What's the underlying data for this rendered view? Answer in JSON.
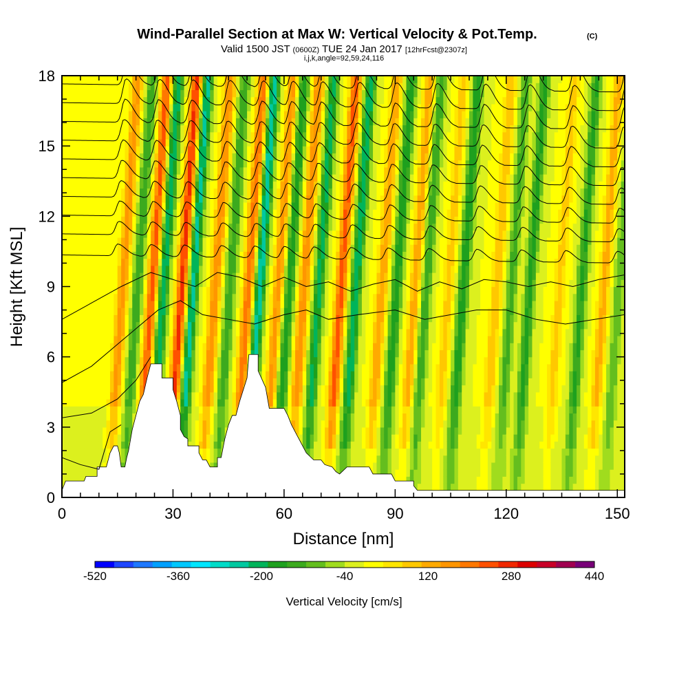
{
  "header": {
    "title": "Wind-Parallel Section at Max W: Vertical Velocity & Pot.Temp.",
    "copyright": "(C)",
    "valid_prefix": "Valid 1500 JST",
    "valid_utc": "(0600Z)",
    "valid_date": "TUE 24 Jan 2017",
    "forecast_tag": "[12hrFcst@2307z]",
    "section_params": "i,j,k,angle=92,59,24,116"
  },
  "chart_data": {
    "type": "heatmap",
    "title": "Wind-Parallel Section at Max W: Vertical Velocity & Pot.Temp.",
    "xlabel": "Distance [nm]",
    "ylabel": "Height [Kft MSL]",
    "xlim": [
      0,
      152
    ],
    "ylim": [
      0,
      18
    ],
    "xticks": [
      0,
      30,
      60,
      90,
      120,
      150
    ],
    "yticks": [
      0,
      3,
      6,
      9,
      12,
      15,
      18
    ],
    "minor_x_step": 5,
    "minor_y_step": 1,
    "field": "Vertical Velocity",
    "contours": "Pot.Temp.",
    "colorbar": {
      "label": "Vertical Velocity [cm/s]",
      "min": -520,
      "max": 440,
      "step": 40,
      "tick_labels": [
        -520,
        -360,
        -200,
        -40,
        120,
        280,
        440
      ],
      "colors": [
        "#0000ff",
        "#1e46ff",
        "#1e78ff",
        "#00a0ff",
        "#00c8ff",
        "#00e6ff",
        "#00dcc8",
        "#00c8a0",
        "#00b45a",
        "#1ea01e",
        "#3caa1e",
        "#64be1e",
        "#a0dc1e",
        "#dcf01e",
        "#ffff00",
        "#ffe600",
        "#ffc800",
        "#ffaa00",
        "#ff9600",
        "#ff7800",
        "#ff5000",
        "#f02800",
        "#dc0000",
        "#c80028",
        "#a00050",
        "#780078"
      ]
    },
    "terrain_kft": [
      [
        0,
        0.3
      ],
      [
        1,
        0.7
      ],
      [
        6,
        0.7
      ],
      [
        6.5,
        0.9
      ],
      [
        9.5,
        0.9
      ],
      [
        9.5,
        1.3
      ],
      [
        12,
        1.3
      ],
      [
        13,
        1.9
      ],
      [
        14,
        2.2
      ],
      [
        15,
        2.2
      ],
      [
        15.5,
        1.9
      ],
      [
        16,
        1.3
      ],
      [
        17,
        1.3
      ],
      [
        17.5,
        1.7
      ],
      [
        18,
        2.0
      ],
      [
        19,
        2.9
      ],
      [
        20,
        3.5
      ],
      [
        21,
        4.1
      ],
      [
        22,
        4.4
      ],
      [
        23,
        5.1
      ],
      [
        24,
        5.7
      ],
      [
        27,
        5.7
      ],
      [
        27,
        5.1
      ],
      [
        30,
        5.1
      ],
      [
        30,
        4.6
      ],
      [
        31,
        4.1
      ],
      [
        32,
        3.5
      ],
      [
        32,
        2.9
      ],
      [
        33,
        2.6
      ],
      [
        34,
        2.5
      ],
      [
        34,
        2.2
      ],
      [
        37,
        2.2
      ],
      [
        37,
        1.9
      ],
      [
        38,
        1.6
      ],
      [
        39,
        1.6
      ],
      [
        40,
        1.3
      ],
      [
        42,
        1.3
      ],
      [
        42,
        1.7
      ],
      [
        43,
        1.7
      ],
      [
        44,
        2.5
      ],
      [
        45,
        3.1
      ],
      [
        46,
        3.5
      ],
      [
        47,
        3.5
      ],
      [
        48,
        4.1
      ],
      [
        49,
        4.6
      ],
      [
        50,
        5.1
      ],
      [
        50.5,
        6.1
      ],
      [
        53,
        6.1
      ],
      [
        53,
        5.4
      ],
      [
        55,
        4.7
      ],
      [
        56,
        3.8
      ],
      [
        60,
        3.8
      ],
      [
        61,
        3.5
      ],
      [
        62,
        3.1
      ],
      [
        63,
        2.8
      ],
      [
        64,
        2.5
      ],
      [
        65,
        2.2
      ],
      [
        66,
        1.9
      ],
      [
        68,
        1.6
      ],
      [
        70,
        1.6
      ],
      [
        71,
        1.4
      ],
      [
        73,
        1.3
      ],
      [
        74,
        1.1
      ],
      [
        75,
        1.0
      ],
      [
        77,
        1.3
      ],
      [
        83,
        1.3
      ],
      [
        84,
        1.0
      ],
      [
        89,
        1.0
      ],
      [
        90,
        0.7
      ],
      [
        95,
        0.7
      ],
      [
        95,
        0.5
      ],
      [
        96,
        0.3
      ],
      [
        152,
        0.3
      ]
    ],
    "theta_isentropes": [
      [
        [
          0,
          1.7
        ],
        [
          5,
          1.4
        ],
        [
          10,
          1.2
        ],
        [
          13,
          2.8
        ],
        [
          16,
          3.1
        ]
      ],
      [
        [
          0,
          3.4
        ],
        [
          8,
          3.6
        ],
        [
          15,
          4.2
        ],
        [
          20,
          5.0
        ],
        [
          24,
          6.0
        ]
      ],
      [
        [
          0,
          4.9
        ],
        [
          8,
          5.6
        ],
        [
          14,
          6.4
        ],
        [
          20,
          7.2
        ],
        [
          26,
          8.0
        ],
        [
          32,
          8.4
        ],
        [
          38,
          7.8
        ],
        [
          45,
          7.6
        ],
        [
          52,
          7.4
        ],
        [
          60,
          7.8
        ],
        [
          66,
          8.0
        ],
        [
          72,
          7.6
        ],
        [
          80,
          7.8
        ],
        [
          90,
          8.0
        ],
        [
          98,
          7.6
        ],
        [
          105,
          7.8
        ],
        [
          112,
          8.0
        ],
        [
          120,
          8.0
        ],
        [
          128,
          7.6
        ],
        [
          136,
          7.4
        ],
        [
          144,
          7.6
        ],
        [
          152,
          7.8
        ]
      ],
      [
        [
          0,
          7.6
        ],
        [
          8,
          8.3
        ],
        [
          16,
          9.0
        ],
        [
          24,
          9.6
        ],
        [
          30,
          9.3
        ],
        [
          36,
          9.0
        ],
        [
          42,
          9.6
        ],
        [
          48,
          9.4
        ],
        [
          54,
          9.0
        ],
        [
          60,
          9.4
        ],
        [
          66,
          9.0
        ],
        [
          72,
          9.2
        ],
        [
          78,
          8.8
        ],
        [
          84,
          9.1
        ],
        [
          90,
          9.3
        ],
        [
          96,
          8.8
        ],
        [
          102,
          9.2
        ],
        [
          108,
          8.9
        ],
        [
          114,
          9.3
        ],
        [
          120,
          9.2
        ],
        [
          126,
          9.0
        ],
        [
          132,
          9.2
        ],
        [
          138,
          9.0
        ],
        [
          145,
          9.3
        ],
        [
          152,
          9.5
        ]
      ]
    ],
    "theta_wave_levels_kft": [
      10.0,
      10.9,
      11.7,
      12.5,
      13.3,
      14.1,
      14.9,
      15.7,
      16.5,
      17.3
    ],
    "theta_wave_crests_nm": [
      15,
      24,
      33,
      43,
      52,
      60,
      68,
      78,
      88,
      99,
      112,
      124,
      136,
      150
    ],
    "velocity_bands": [
      {
        "x": 16,
        "peak": 180
      },
      {
        "x": 20,
        "peak": -160
      },
      {
        "x": 24,
        "peak": 260
      },
      {
        "x": 27,
        "peak": -240
      },
      {
        "x": 32,
        "peak": 300
      },
      {
        "x": 35,
        "peak": -260
      },
      {
        "x": 41,
        "peak": 200
      },
      {
        "x": 45,
        "peak": -160
      },
      {
        "x": 50,
        "peak": 240
      },
      {
        "x": 53,
        "peak": -280
      },
      {
        "x": 58,
        "peak": 180
      },
      {
        "x": 61,
        "peak": -200
      },
      {
        "x": 65,
        "peak": 200
      },
      {
        "x": 69,
        "peak": -220
      },
      {
        "x": 75,
        "peak": 260
      },
      {
        "x": 79,
        "peak": -240
      },
      {
        "x": 86,
        "peak": 160
      },
      {
        "x": 90,
        "peak": -200
      },
      {
        "x": 95,
        "peak": 150
      },
      {
        "x": 98,
        "peak": -160
      },
      {
        "x": 104,
        "peak": 100
      },
      {
        "x": 108,
        "peak": -200
      },
      {
        "x": 117,
        "peak": 120
      },
      {
        "x": 121,
        "peak": -140
      },
      {
        "x": 126,
        "peak": -180
      },
      {
        "x": 134,
        "peak": 100
      },
      {
        "x": 140,
        "peak": -170
      },
      {
        "x": 146,
        "peak": 140
      },
      {
        "x": 150,
        "peak": -120
      }
    ]
  }
}
